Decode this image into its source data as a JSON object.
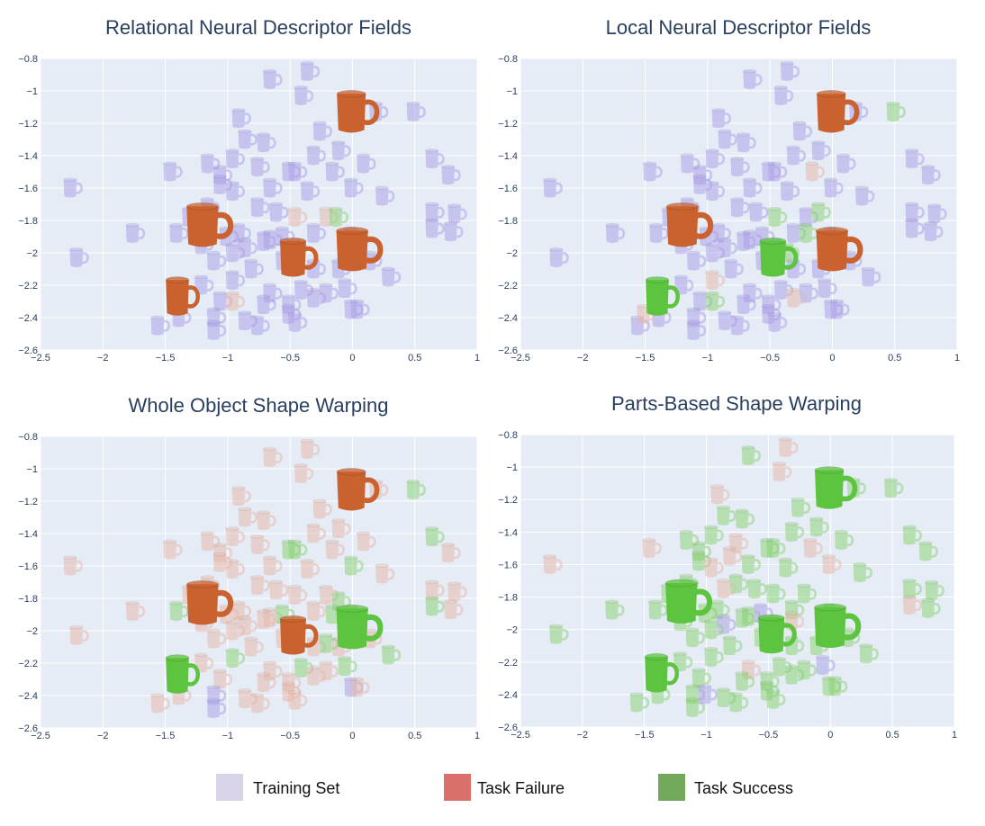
{
  "legend": {
    "items": [
      {
        "key": "training",
        "label": "Training Set",
        "color": "#d9d3e8"
      },
      {
        "key": "failure",
        "label": "Task Failure",
        "color": "#d9706a"
      },
      {
        "key": "success",
        "label": "Task Success",
        "color": "#74a85a"
      }
    ]
  },
  "colors": {
    "plot_bg": "#e5ecf6",
    "training": "#a99ce8",
    "failure": "#e7b6a6",
    "success": "#86d16f",
    "big_failure": "#c9622f",
    "big_success": "#5cc43e"
  },
  "chart_data": [
    {
      "type": "scatter",
      "title": "Relational Neural Descriptor Fields",
      "xlim": [
        -2.5,
        1
      ],
      "ylim": [
        -2.6,
        -0.8
      ],
      "xticks": [
        -2.5,
        -2,
        -1.5,
        -1,
        -0.5,
        0,
        0.5,
        1
      ],
      "xtick_labels": [
        "−2.5",
        "−2",
        "−1.5",
        "−1",
        "−0.5",
        "0",
        "0.5",
        "1"
      ],
      "yticks": [
        -0.8,
        -1,
        -1.2,
        -1.4,
        -1.6,
        -1.8,
        -2,
        -2.2,
        -2.4,
        -2.6
      ],
      "ytick_labels": [
        "−0.8",
        "−1",
        "−1.2",
        "−1.4",
        "−1.6",
        "−1.8",
        "−2",
        "−2.2",
        "−2.4",
        "−2.6"
      ],
      "grid": true,
      "status_outliers": {
        "failure": [
          [
            -0.42,
            -1.77
          ],
          [
            -0.95,
            -2.3
          ],
          [
            -0.2,
            -1.8
          ]
        ],
        "success": [
          [
            -0.12,
            -1.78
          ]
        ]
      },
      "test_points": [
        {
          "x": 0.02,
          "y": -1.13,
          "status": "failure"
        },
        {
          "x": -1.17,
          "y": -1.83,
          "status": "failure"
        },
        {
          "x": -0.45,
          "y": -2.03,
          "status": "failure"
        },
        {
          "x": 0.03,
          "y": -1.98,
          "status": "failure"
        },
        {
          "x": -1.38,
          "y": -2.27,
          "status": "failure"
        }
      ]
    },
    {
      "type": "scatter",
      "title": "Local Neural Descriptor Fields",
      "xlim": [
        -2.5,
        1
      ],
      "ylim": [
        -2.6,
        -0.8
      ],
      "xticks": [
        -2.5,
        -2,
        -1.5,
        -1,
        -0.5,
        0,
        0.5,
        1
      ],
      "xtick_labels": [
        "−2.5",
        "−2",
        "−1.5",
        "−1",
        "−0.5",
        "0",
        "0.5",
        "1"
      ],
      "yticks": [
        -0.8,
        -1,
        -1.2,
        -1.4,
        -1.6,
        -1.8,
        -2,
        -2.2,
        -2.4,
        -2.6
      ],
      "ytick_labels": [
        "−0.8",
        "−1",
        "−1.2",
        "−1.4",
        "−1.6",
        "−1.8",
        "−2",
        "−2.2",
        "−2.4",
        "−2.6"
      ],
      "grid": true,
      "status_outliers": {
        "failure": [
          [
            -0.1,
            -1.5
          ],
          [
            -1.5,
            -2.38
          ],
          [
            -0.95,
            -2.15
          ],
          [
            -0.3,
            -2.25
          ]
        ],
        "success": [
          [
            0.5,
            -1.13
          ],
          [
            -0.42,
            -1.73
          ],
          [
            -0.1,
            -1.75
          ],
          [
            -0.2,
            -1.88
          ],
          [
            -0.95,
            -2.3
          ],
          [
            -0.35,
            -2.0
          ]
        ]
      },
      "test_points": [
        {
          "x": 0.02,
          "y": -1.13,
          "status": "failure"
        },
        {
          "x": -1.17,
          "y": -1.83,
          "status": "failure"
        },
        {
          "x": -0.45,
          "y": -2.03,
          "status": "success"
        },
        {
          "x": 0.03,
          "y": -1.98,
          "status": "failure"
        },
        {
          "x": -1.38,
          "y": -2.27,
          "status": "success"
        }
      ]
    },
    {
      "type": "scatter",
      "title": "Whole Object Shape Warping",
      "xlim": [
        -2.5,
        1
      ],
      "ylim": [
        -2.6,
        -0.8
      ],
      "xticks": [
        -2.5,
        -2,
        -1.5,
        -1,
        -0.5,
        0,
        0.5,
        1
      ],
      "xtick_labels": [
        "−2.5",
        "−2",
        "−1.5",
        "−1",
        "−0.5",
        "0",
        "0.5",
        "1"
      ],
      "yticks": [
        -0.8,
        -1,
        -1.2,
        -1.4,
        -1.6,
        -1.8,
        -2,
        -2.2,
        -2.4,
        -2.6
      ],
      "ytick_labels": [
        "−0.8",
        "−1",
        "−1.2",
        "−1.4",
        "−1.6",
        "−1.8",
        "−2",
        "−2.2",
        "−2.4",
        "−2.6"
      ],
      "grid": true,
      "status_outliers": {
        "success": [
          [
            0.5,
            -1.13
          ],
          [
            0.65,
            -1.4
          ],
          [
            0.05,
            -1.55
          ],
          [
            -0.45,
            -1.55
          ],
          [
            -1.4,
            -1.88
          ],
          [
            -0.55,
            -1.85
          ],
          [
            -0.1,
            -1.82
          ],
          [
            -0.15,
            -1.9
          ],
          [
            -0.2,
            -2.08
          ],
          [
            0.25,
            -2.15
          ],
          [
            -0.95,
            -2.18
          ],
          [
            -0.45,
            -2.22
          ],
          [
            -0.05,
            -2.2
          ],
          [
            0.65,
            -1.9
          ]
        ],
        "training": [
          [
            -1.1,
            -2.45
          ],
          [
            -0.05,
            -2.35
          ],
          [
            -1.25,
            -1.85
          ]
        ]
      },
      "test_points": [
        {
          "x": 0.02,
          "y": -1.13,
          "status": "failure"
        },
        {
          "x": -1.17,
          "y": -1.83,
          "status": "failure"
        },
        {
          "x": -0.45,
          "y": -2.03,
          "status": "failure"
        },
        {
          "x": 0.03,
          "y": -1.98,
          "status": "success"
        },
        {
          "x": -1.38,
          "y": -2.27,
          "status": "success"
        }
      ]
    },
    {
      "type": "scatter",
      "title": "Parts-Based Shape Warping",
      "xlim": [
        -2.5,
        1
      ],
      "ylim": [
        -2.6,
        -0.8
      ],
      "xticks": [
        -2.5,
        -2,
        -1.5,
        -1,
        -0.5,
        0,
        0.5,
        1
      ],
      "xtick_labels": [
        "−2.5",
        "−2",
        "−1.5",
        "−1",
        "−0.5",
        "0",
        "0.5",
        "1"
      ],
      "yticks": [
        -0.8,
        -1,
        -1.2,
        -1.4,
        -1.6,
        -1.8,
        -2,
        -2.2,
        -2.4,
        -2.6
      ],
      "ytick_labels": [
        "−0.8",
        "−1",
        "−1.2",
        "−1.4",
        "−1.6",
        "−1.8",
        "−2",
        "−2.2",
        "−2.4",
        "−2.6"
      ],
      "grid": true,
      "status_outliers": {
        "failure": [
          [
            -0.35,
            -0.88
          ],
          [
            -0.4,
            -1.05
          ],
          [
            -0.95,
            -1.2
          ],
          [
            -0.75,
            -1.5
          ],
          [
            -1.5,
            -1.5
          ],
          [
            -0.15,
            -1.5
          ],
          [
            -0.85,
            -1.75
          ],
          [
            0.65,
            -1.85
          ],
          [
            -0.6,
            -2.2
          ],
          [
            -0.3,
            -1.95
          ],
          [
            -0.05,
            -1.55
          ],
          [
            -2.25,
            -1.58
          ],
          [
            -0.95,
            -1.68
          ],
          [
            -0.8,
            -1.55
          ]
        ],
        "training": [
          [
            -1.2,
            -1.85
          ],
          [
            -0.05,
            -2.2
          ],
          [
            -1.0,
            -2.4
          ],
          [
            -0.55,
            -1.95
          ],
          [
            -0.85,
            -1.95
          ]
        ]
      },
      "test_points": [
        {
          "x": 0.02,
          "y": -1.13,
          "status": "success"
        },
        {
          "x": -1.17,
          "y": -1.83,
          "status": "success"
        },
        {
          "x": -0.45,
          "y": -2.03,
          "status": "success"
        },
        {
          "x": 0.03,
          "y": -1.98,
          "status": "success"
        },
        {
          "x": -1.38,
          "y": -2.27,
          "status": "success"
        }
      ]
    }
  ],
  "training_points": [
    [
      -0.65,
      -0.93
    ],
    [
      -0.35,
      -0.88
    ],
    [
      -0.4,
      -1.03
    ],
    [
      0.5,
      -1.13
    ],
    [
      0.2,
      -1.13
    ],
    [
      -0.9,
      -1.17
    ],
    [
      -0.25,
      -1.25
    ],
    [
      -0.85,
      -1.3
    ],
    [
      -0.7,
      -1.32
    ],
    [
      -0.1,
      -1.37
    ],
    [
      -1.15,
      -1.45
    ],
    [
      -0.95,
      -1.42
    ],
    [
      -0.75,
      -1.47
    ],
    [
      0.65,
      -1.42
    ],
    [
      0.1,
      -1.45
    ],
    [
      -1.45,
      -1.5
    ],
    [
      -1.05,
      -1.52
    ],
    [
      -0.5,
      -1.5
    ],
    [
      -0.45,
      -1.5
    ],
    [
      -0.15,
      -1.5
    ],
    [
      0.78,
      -1.52
    ],
    [
      -1.05,
      -1.58
    ],
    [
      -0.95,
      -1.62
    ],
    [
      -0.65,
      -1.6
    ],
    [
      -2.25,
      -1.6
    ],
    [
      -0.35,
      -1.62
    ],
    [
      0.0,
      -1.6
    ],
    [
      -1.15,
      -1.72
    ],
    [
      -0.75,
      -1.72
    ],
    [
      -0.45,
      -1.78
    ],
    [
      -0.2,
      -1.78
    ],
    [
      0.65,
      -1.75
    ],
    [
      0.83,
      -1.76
    ],
    [
      -1.75,
      -1.88
    ],
    [
      -1.3,
      -1.78
    ],
    [
      -0.9,
      -1.88
    ],
    [
      -1.0,
      -1.9
    ],
    [
      -0.65,
      -1.92
    ],
    [
      -0.55,
      -1.9
    ],
    [
      -0.3,
      -1.88
    ],
    [
      0.0,
      -1.9
    ],
    [
      0.65,
      -1.85
    ],
    [
      0.8,
      -1.87
    ],
    [
      -1.4,
      -1.88
    ],
    [
      -1.2,
      -1.95
    ],
    [
      -0.85,
      -1.97
    ],
    [
      -0.7,
      -1.93
    ],
    [
      -0.45,
      -1.97
    ],
    [
      -2.2,
      -2.03
    ],
    [
      -1.1,
      -2.05
    ],
    [
      -0.95,
      -2.0
    ],
    [
      -0.55,
      -2.05
    ],
    [
      -0.3,
      -2.1
    ],
    [
      -0.1,
      -2.1
    ],
    [
      0.15,
      -2.05
    ],
    [
      0.3,
      -2.15
    ],
    [
      -1.2,
      -2.2
    ],
    [
      -0.95,
      -2.17
    ],
    [
      -0.65,
      -2.25
    ],
    [
      -0.4,
      -2.23
    ],
    [
      -0.2,
      -2.25
    ],
    [
      -0.05,
      -2.22
    ],
    [
      -1.05,
      -2.3
    ],
    [
      -0.7,
      -2.32
    ],
    [
      -0.5,
      -2.32
    ],
    [
      -0.3,
      -2.28
    ],
    [
      0.0,
      -2.35
    ],
    [
      -1.1,
      -2.4
    ],
    [
      -0.85,
      -2.42
    ],
    [
      -0.5,
      -2.38
    ],
    [
      -0.45,
      -2.43
    ],
    [
      -1.55,
      -2.45
    ],
    [
      -1.38,
      -2.4
    ],
    [
      -1.1,
      -2.48
    ],
    [
      -0.75,
      -2.45
    ],
    [
      0.05,
      -2.35
    ],
    [
      -0.6,
      -1.75
    ],
    [
      -0.8,
      -2.1
    ],
    [
      0.25,
      -1.65
    ],
    [
      -0.3,
      -1.4
    ]
  ]
}
